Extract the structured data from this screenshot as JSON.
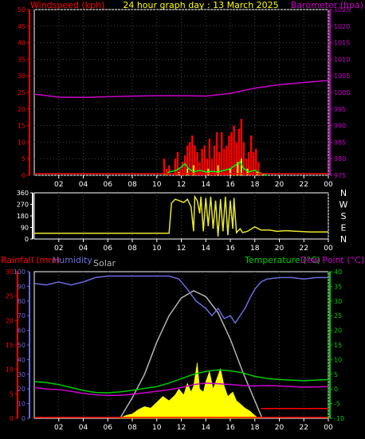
{
  "title": "24 hour graph day : 13 March 2025",
  "colors": {
    "wind": "#ff0000",
    "gust": "#ffff00",
    "avgwind": "#00ff00",
    "baro": "#cc00cc",
    "dir": "#e6e62e",
    "rain": "#ff0000",
    "humidity": "#6b6bdc",
    "solar": "#ffff00",
    "solarmax": "#b4b4b4",
    "temp": "#00cc00",
    "dew": "#cc00cc",
    "axis": "#ffffff",
    "grid": "#444444"
  },
  "panels": {
    "wind": {
      "left_label": "Windspeed (kph)",
      "right_label": "Barometer (hpa)"
    },
    "direction": {
      "compass": [
        "N",
        "W",
        "S",
        "E",
        "N"
      ]
    },
    "climate": {
      "rain_label": "Rainfall (mm)",
      "humidity_label": "Humidity",
      "solar_label": "Solar",
      "temp_label": "Temperature (°C)",
      "dew_label": "Dew Point (°C)"
    }
  },
  "x_ticks": [
    "02",
    "04",
    "06",
    "08",
    "10",
    "12",
    "14",
    "16",
    "18",
    "20",
    "22",
    "00"
  ],
  "chart_data": [
    {
      "type": "line",
      "title": "24 hour graph day : 13 March 2025",
      "xlabel": "",
      "left_axis": {
        "label": "Windspeed (kph)",
        "range": [
          0,
          50
        ],
        "ticks": [
          "0",
          "5",
          "10",
          "15",
          "20",
          "25",
          "30",
          "35",
          "40",
          "45",
          "50"
        ]
      },
      "right_axis": {
        "label": "Barometer (hpa)",
        "range": [
          975,
          1025
        ],
        "ticks": [
          "975",
          "980",
          "985",
          "990",
          "995",
          "1000",
          "1005",
          "1010",
          "1015",
          "1020",
          "1025"
        ]
      },
      "x": [
        0,
        2,
        4,
        6,
        8,
        10,
        12,
        14,
        16,
        17,
        18,
        20,
        22,
        24
      ],
      "series": [
        {
          "name": "Barometer (hpa)",
          "axis": "right",
          "values": [
            999.5,
            998.6,
            998.5,
            998.7,
            998.9,
            999.0,
            999.0,
            998.9,
            999.7,
            1000.5,
            1001.3,
            1002.3,
            1003.0,
            1003.6
          ]
        }
      ],
      "bars": {
        "axis": "left",
        "wind": [
          [
            10.6,
            5
          ],
          [
            10.8,
            2
          ],
          [
            11.0,
            3
          ],
          [
            11.2,
            0
          ],
          [
            11.5,
            5
          ],
          [
            11.7,
            7
          ],
          [
            11.9,
            2
          ],
          [
            12.1,
            4
          ],
          [
            12.3,
            6
          ],
          [
            12.5,
            9
          ],
          [
            12.7,
            10
          ],
          [
            12.9,
            12
          ],
          [
            13.1,
            9
          ],
          [
            13.3,
            7
          ],
          [
            13.5,
            4
          ],
          [
            13.7,
            8
          ],
          [
            13.9,
            9
          ],
          [
            14.1,
            5
          ],
          [
            14.3,
            11
          ],
          [
            14.5,
            5
          ],
          [
            14.7,
            9
          ],
          [
            14.9,
            13
          ],
          [
            15.1,
            7
          ],
          [
            15.3,
            13
          ],
          [
            15.5,
            8
          ],
          [
            15.7,
            9
          ],
          [
            15.9,
            12
          ],
          [
            16.1,
            13
          ],
          [
            16.3,
            15
          ],
          [
            16.5,
            10
          ],
          [
            16.7,
            14
          ],
          [
            16.9,
            17
          ],
          [
            17.1,
            10
          ],
          [
            17.3,
            5
          ],
          [
            17.5,
            7
          ],
          [
            17.7,
            12
          ],
          [
            17.9,
            7
          ],
          [
            18.1,
            8
          ],
          [
            18.3,
            4
          ],
          [
            18.5,
            1
          ]
        ],
        "gust": [
          [
            11.8,
            1
          ],
          [
            12.5,
            2
          ],
          [
            13.0,
            3
          ],
          [
            14.2,
            2
          ],
          [
            15.0,
            3
          ],
          [
            16.0,
            2
          ],
          [
            16.6,
            4
          ],
          [
            16.9,
            5
          ],
          [
            17.4,
            2
          ],
          [
            18.2,
            1
          ]
        ]
      },
      "avg_wind": {
        "axis": "left",
        "points": [
          [
            10.6,
            0
          ],
          [
            11.0,
            1
          ],
          [
            11.6,
            1.5
          ],
          [
            12.0,
            2.5
          ],
          [
            12.3,
            3.5
          ],
          [
            12.6,
            2
          ],
          [
            13.0,
            1
          ],
          [
            13.5,
            1.5
          ],
          [
            14.0,
            1
          ],
          [
            14.5,
            1.2
          ],
          [
            15.0,
            1
          ],
          [
            15.5,
            1.5
          ],
          [
            16.0,
            2
          ],
          [
            16.4,
            3
          ],
          [
            16.8,
            4
          ],
          [
            17.1,
            2
          ],
          [
            17.5,
            1
          ],
          [
            18.0,
            1.5
          ],
          [
            18.5,
            0.5
          ],
          [
            19.0,
            0
          ]
        ]
      }
    },
    {
      "type": "line",
      "title": "",
      "left_axis": {
        "label": "",
        "range": [
          0,
          360
        ],
        "ticks": [
          "0",
          "90",
          "180",
          "270",
          "360"
        ]
      },
      "right_axis": {
        "label": "",
        "labels": [
          "N",
          "W",
          "S",
          "E",
          "N"
        ]
      },
      "series": [
        {
          "name": "",
          "values_xy": [
            [
              0,
              45
            ],
            [
              10.5,
              45
            ],
            [
              11.0,
              45
            ],
            [
              11.2,
              280
            ],
            [
              11.5,
              310
            ],
            [
              11.8,
              300
            ],
            [
              12.2,
              285
            ],
            [
              12.5,
              310
            ],
            [
              12.8,
              250
            ],
            [
              13.0,
              60
            ],
            [
              13.1,
              330
            ],
            [
              13.3,
              300
            ],
            [
              13.5,
              200
            ],
            [
              13.6,
              330
            ],
            [
              13.8,
              60
            ],
            [
              14.0,
              320
            ],
            [
              14.2,
              100
            ],
            [
              14.4,
              330
            ],
            [
              14.6,
              80
            ],
            [
              14.8,
              300
            ],
            [
              15.0,
              20
            ],
            [
              15.2,
              310
            ],
            [
              15.4,
              60
            ],
            [
              15.6,
              330
            ],
            [
              15.8,
              30
            ],
            [
              16.0,
              300
            ],
            [
              16.2,
              80
            ],
            [
              16.3,
              320
            ],
            [
              16.5,
              50
            ],
            [
              16.8,
              80
            ],
            [
              17.0,
              50
            ],
            [
              17.4,
              60
            ],
            [
              18.0,
              95
            ],
            [
              18.5,
              70
            ],
            [
              19.2,
              70
            ],
            [
              19.8,
              60
            ],
            [
              20.5,
              65
            ],
            [
              21.5,
              60
            ],
            [
              22.5,
              55
            ],
            [
              24,
              55
            ]
          ]
        }
      ]
    },
    {
      "type": "area",
      "title": "",
      "left_axis": {
        "label": "Rainfall (mm)",
        "range": [
          0,
          30
        ],
        "ticks": [
          "0",
          "5",
          "10",
          "15",
          "20",
          "25",
          "30"
        ]
      },
      "humidity_axis": {
        "label": "Humidity",
        "range": [
          0,
          100
        ],
        "ticks": [
          "0",
          "10",
          "20",
          "30",
          "40",
          "50",
          "60",
          "70",
          "80",
          "90",
          "100"
        ]
      },
      "right_axis": {
        "label": "Temperature (°C)",
        "range": [
          -10,
          40
        ],
        "ticks": [
          "-10",
          "-5",
          "0",
          "5",
          "10",
          "15",
          "20",
          "25",
          "30",
          "35",
          "40"
        ]
      },
      "series": [
        {
          "name": "Humidity",
          "axis": "humidity",
          "values_xy": [
            [
              0,
              92
            ],
            [
              1,
              91
            ],
            [
              2,
              93
            ],
            [
              3,
              91
            ],
            [
              4,
              93
            ],
            [
              5,
              96
            ],
            [
              6,
              97
            ],
            [
              8,
              97
            ],
            [
              10,
              97
            ],
            [
              11,
              97
            ],
            [
              11.8,
              95
            ],
            [
              12.5,
              88
            ],
            [
              13.2,
              80
            ],
            [
              14,
              75
            ],
            [
              14.5,
              70
            ],
            [
              15.0,
              75
            ],
            [
              15.5,
              68
            ],
            [
              16.0,
              70
            ],
            [
              16.4,
              65
            ],
            [
              16.8,
              70
            ],
            [
              17.2,
              75
            ],
            [
              17.6,
              82
            ],
            [
              18.0,
              88
            ],
            [
              18.5,
              93
            ],
            [
              19.0,
              95
            ],
            [
              20,
              96
            ],
            [
              21,
              96
            ],
            [
              22,
              95
            ],
            [
              23,
              96
            ],
            [
              24,
              96
            ]
          ]
        },
        {
          "name": "Temperature (°C)",
          "axis": "right",
          "values_xy": [
            [
              0,
              2.5
            ],
            [
              1,
              2.2
            ],
            [
              2,
              1.5
            ],
            [
              3,
              0.5
            ],
            [
              4,
              -0.5
            ],
            [
              5,
              -1.2
            ],
            [
              6,
              -1.3
            ],
            [
              7,
              -1.0
            ],
            [
              8,
              -0.5
            ],
            [
              9,
              0.2
            ],
            [
              10,
              0.8
            ],
            [
              11,
              2.0
            ],
            [
              12,
              3.5
            ],
            [
              13,
              5
            ],
            [
              14,
              6
            ],
            [
              15,
              6.5
            ],
            [
              16,
              6.2
            ],
            [
              17,
              5.5
            ],
            [
              18,
              4.3
            ],
            [
              19,
              3.6
            ],
            [
              20,
              3.2
            ],
            [
              21,
              3.0
            ],
            [
              22,
              2.8
            ],
            [
              23,
              3.0
            ],
            [
              24,
              3.2
            ]
          ]
        },
        {
          "name": "Dew Point (°C)",
          "axis": "right",
          "values_xy": [
            [
              0,
              0.5
            ],
            [
              1,
              0
            ],
            [
              2,
              -0.2
            ],
            [
              3,
              -0.8
            ],
            [
              4,
              -1.5
            ],
            [
              5,
              -2.0
            ],
            [
              6,
              -2.2
            ],
            [
              7,
              -2.2
            ],
            [
              8,
              -1.8
            ],
            [
              9,
              -1.3
            ],
            [
              10,
              -0.8
            ],
            [
              11,
              -0.3
            ],
            [
              12,
              0.5
            ],
            [
              13,
              1.5
            ],
            [
              14,
              2.0
            ],
            [
              15,
              1.8
            ],
            [
              16,
              1.5
            ],
            [
              17,
              1.2
            ],
            [
              18,
              1.0
            ],
            [
              19,
              1.2
            ],
            [
              20,
              1.0
            ],
            [
              21,
              0.8
            ],
            [
              22,
              0.6
            ],
            [
              23,
              0.7
            ],
            [
              24,
              0.8
            ]
          ]
        },
        {
          "name": "Rainfall (mm)",
          "axis": "left",
          "values_xy": [
            [
              18.5,
              2
            ],
            [
              24,
              2
            ]
          ]
        }
      ],
      "solar": [
        [
          6.9,
          0
        ],
        [
          7.5,
          2
        ],
        [
          8.0,
          3
        ],
        [
          8.5,
          6
        ],
        [
          9.0,
          8
        ],
        [
          9.5,
          7
        ],
        [
          10.0,
          11
        ],
        [
          10.5,
          15
        ],
        [
          11.0,
          12
        ],
        [
          11.5,
          16
        ],
        [
          11.8,
          20
        ],
        [
          12.2,
          16
        ],
        [
          12.5,
          24
        ],
        [
          12.8,
          18
        ],
        [
          13.0,
          22
        ],
        [
          13.3,
          38
        ],
        [
          13.5,
          20
        ],
        [
          13.8,
          18
        ],
        [
          14.0,
          25
        ],
        [
          14.3,
          32
        ],
        [
          14.6,
          20
        ],
        [
          14.9,
          27
        ],
        [
          15.2,
          34
        ],
        [
          15.5,
          22
        ],
        [
          15.8,
          15
        ],
        [
          16.2,
          18
        ],
        [
          16.5,
          12
        ],
        [
          16.8,
          10
        ],
        [
          17.2,
          7
        ],
        [
          17.6,
          5
        ],
        [
          18.0,
          2
        ],
        [
          18.3,
          0
        ]
      ],
      "solarmax": [
        [
          7.0,
          0
        ],
        [
          8.0,
          14
        ],
        [
          9.0,
          30
        ],
        [
          10.0,
          52
        ],
        [
          11.0,
          70
        ],
        [
          12.0,
          82
        ],
        [
          13.0,
          87
        ],
        [
          14.0,
          83
        ],
        [
          15.0,
          72
        ],
        [
          16.0,
          54
        ],
        [
          17.0,
          32
        ],
        [
          18.0,
          12
        ],
        [
          18.6,
          0
        ]
      ],
      "solar_range": [
        0,
        100
      ]
    }
  ]
}
